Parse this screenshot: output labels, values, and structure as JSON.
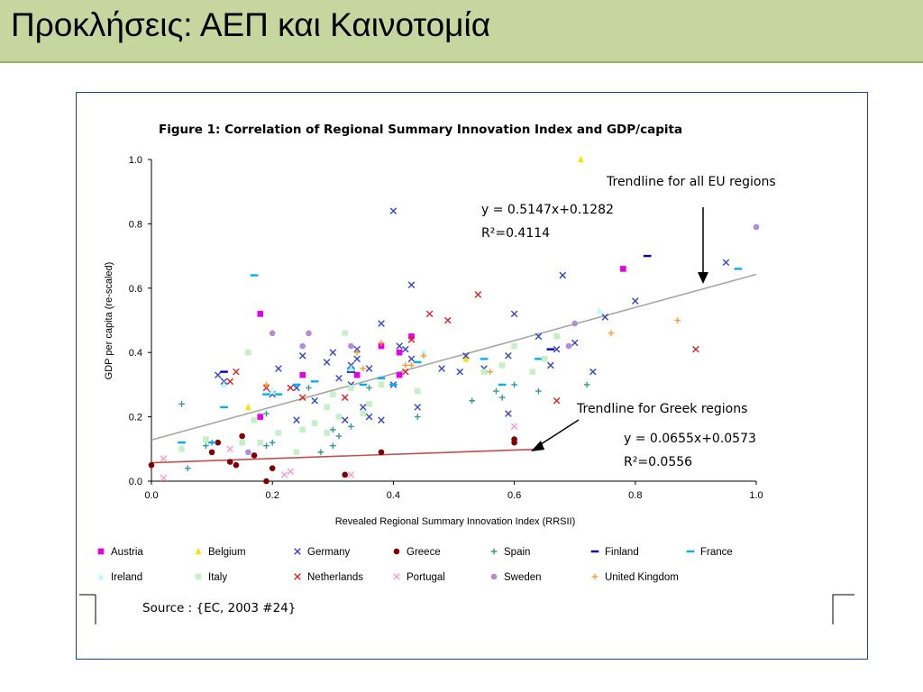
{
  "slide": {
    "title": "Προκλήσεις: ΑΕΠ και Καινοτομία"
  },
  "source_note": "Source : {EC, 2003 #24}",
  "chart_data": {
    "type": "scatter",
    "title": "Figure 1: Correlation of Regional Summary Innovation Index and GDP/capita",
    "xlabel": "Revealed Regional Summary Innovation Index (RRSII)",
    "ylabel": "GDP per capita (re-scaled)",
    "xlim": [
      0,
      1
    ],
    "ylim": [
      0,
      1
    ],
    "x_ticks": [
      "0.0",
      "0.2",
      "0.4",
      "0.6",
      "0.8",
      "1.0"
    ],
    "y_ticks": [
      "0.0",
      "0.2",
      "0.4",
      "0.6",
      "0.8",
      "1.0"
    ],
    "legend_placement": "bottom",
    "trendlines": [
      {
        "label": "Trendline for all EU regions",
        "equation": "y = 0.5147x+0.1282",
        "r2": "R²=0.4114",
        "slope": 0.5147,
        "intercept": 0.1282,
        "x_range": [
          0,
          1
        ],
        "color": "#a6a6a6"
      },
      {
        "label": "Trendline for Greek regions",
        "equation": "y = 0.0655x+0.0573",
        "r2": "R²=0.0556",
        "slope": 0.0655,
        "intercept": 0.0573,
        "x_range": [
          0,
          0.65
        ],
        "color": "#c0504d"
      }
    ],
    "series": [
      {
        "name": "Austria",
        "marker": "square",
        "color": "#e600e6",
        "points": [
          [
            0.18,
            0.2
          ],
          [
            0.18,
            0.52
          ],
          [
            0.25,
            0.33
          ],
          [
            0.34,
            0.33
          ],
          [
            0.38,
            0.42
          ],
          [
            0.41,
            0.4
          ],
          [
            0.41,
            0.33
          ],
          [
            0.43,
            0.45
          ],
          [
            0.78,
            0.66
          ]
        ]
      },
      {
        "name": "Belgium",
        "marker": "triangle",
        "color": "#ffe000",
        "points": [
          [
            0.16,
            0.23
          ],
          [
            0.52,
            0.38
          ],
          [
            0.71,
            1.0
          ]
        ]
      },
      {
        "name": "Germany",
        "marker": "x",
        "color": "#3344cc",
        "points": [
          [
            0.11,
            0.33
          ],
          [
            0.12,
            0.31
          ],
          [
            0.2,
            0.27
          ],
          [
            0.21,
            0.35
          ],
          [
            0.24,
            0.29
          ],
          [
            0.24,
            0.19
          ],
          [
            0.25,
            0.39
          ],
          [
            0.27,
            0.25
          ],
          [
            0.29,
            0.37
          ],
          [
            0.3,
            0.4
          ],
          [
            0.31,
            0.32
          ],
          [
            0.32,
            0.19
          ],
          [
            0.33,
            0.3
          ],
          [
            0.33,
            0.36
          ],
          [
            0.34,
            0.41
          ],
          [
            0.34,
            0.38
          ],
          [
            0.35,
            0.23
          ],
          [
            0.36,
            0.35
          ],
          [
            0.36,
            0.2
          ],
          [
            0.38,
            0.49
          ],
          [
            0.38,
            0.19
          ],
          [
            0.4,
            0.3
          ],
          [
            0.4,
            0.84
          ],
          [
            0.41,
            0.42
          ],
          [
            0.42,
            0.41
          ],
          [
            0.43,
            0.38
          ],
          [
            0.43,
            0.61
          ],
          [
            0.44,
            0.23
          ],
          [
            0.48,
            0.35
          ],
          [
            0.51,
            0.34
          ],
          [
            0.52,
            0.39
          ],
          [
            0.55,
            0.35
          ],
          [
            0.59,
            0.39
          ],
          [
            0.59,
            0.21
          ],
          [
            0.6,
            0.52
          ],
          [
            0.64,
            0.45
          ],
          [
            0.66,
            0.36
          ],
          [
            0.67,
            0.41
          ],
          [
            0.68,
            0.64
          ],
          [
            0.7,
            0.43
          ],
          [
            0.73,
            0.34
          ],
          [
            0.75,
            0.51
          ],
          [
            0.8,
            0.56
          ],
          [
            0.95,
            0.68
          ]
        ]
      },
      {
        "name": "Greece",
        "marker": "circle",
        "color": "#7f0000",
        "points": [
          [
            0.0,
            0.05
          ],
          [
            0.1,
            0.09
          ],
          [
            0.11,
            0.12
          ],
          [
            0.13,
            0.06
          ],
          [
            0.14,
            0.05
          ],
          [
            0.15,
            0.14
          ],
          [
            0.17,
            0.08
          ],
          [
            0.19,
            0.0
          ],
          [
            0.2,
            0.04
          ],
          [
            0.32,
            0.02
          ],
          [
            0.38,
            0.09
          ],
          [
            0.6,
            0.13
          ],
          [
            0.6,
            0.12
          ]
        ]
      },
      {
        "name": "Spain",
        "marker": "plus",
        "color": "#339999",
        "points": [
          [
            0.05,
            0.24
          ],
          [
            0.06,
            0.04
          ],
          [
            0.09,
            0.11
          ],
          [
            0.1,
            0.12
          ],
          [
            0.19,
            0.11
          ],
          [
            0.19,
            0.21
          ],
          [
            0.2,
            0.12
          ],
          [
            0.25,
            0.16
          ],
          [
            0.26,
            0.29
          ],
          [
            0.28,
            0.09
          ],
          [
            0.3,
            0.11
          ],
          [
            0.3,
            0.16
          ],
          [
            0.31,
            0.14
          ],
          [
            0.33,
            0.17
          ],
          [
            0.36,
            0.29
          ],
          [
            0.44,
            0.2
          ],
          [
            0.53,
            0.25
          ],
          [
            0.57,
            0.28
          ],
          [
            0.58,
            0.26
          ],
          [
            0.6,
            0.3
          ],
          [
            0.64,
            0.28
          ],
          [
            0.72,
            0.3
          ]
        ]
      },
      {
        "name": "Finland",
        "marker": "dash",
        "color": "#0000cc",
        "points": [
          [
            0.12,
            0.34
          ],
          [
            0.33,
            0.34
          ],
          [
            0.66,
            0.41
          ],
          [
            0.82,
            0.7
          ]
        ]
      },
      {
        "name": "France",
        "marker": "dash",
        "color": "#00b0f0",
        "points": [
          [
            0.05,
            0.12
          ],
          [
            0.1,
            0.12
          ],
          [
            0.12,
            0.23
          ],
          [
            0.17,
            0.64
          ],
          [
            0.19,
            0.27
          ],
          [
            0.21,
            0.27
          ],
          [
            0.24,
            0.3
          ],
          [
            0.27,
            0.31
          ],
          [
            0.33,
            0.35
          ],
          [
            0.35,
            0.3
          ],
          [
            0.38,
            0.32
          ],
          [
            0.4,
            0.3
          ],
          [
            0.44,
            0.37
          ],
          [
            0.55,
            0.38
          ],
          [
            0.58,
            0.3
          ],
          [
            0.64,
            0.38
          ],
          [
            0.97,
            0.66
          ]
        ]
      },
      {
        "name": "Ireland",
        "marker": "triangle",
        "color": "#b3ffff",
        "points": [
          [
            0.12,
            0.3
          ],
          [
            0.2,
            0.28
          ],
          [
            0.33,
            0.35
          ],
          [
            0.45,
            0.4
          ],
          [
            0.74,
            0.53
          ]
        ]
      },
      {
        "name": "Italy",
        "marker": "square",
        "color": "#c6f0c6",
        "points": [
          [
            0.05,
            0.1
          ],
          [
            0.09,
            0.13
          ],
          [
            0.15,
            0.12
          ],
          [
            0.16,
            0.4
          ],
          [
            0.17,
            0.19
          ],
          [
            0.18,
            0.12
          ],
          [
            0.21,
            0.15
          ],
          [
            0.24,
            0.09
          ],
          [
            0.25,
            0.16
          ],
          [
            0.27,
            0.18
          ],
          [
            0.29,
            0.15
          ],
          [
            0.29,
            0.23
          ],
          [
            0.3,
            0.27
          ],
          [
            0.31,
            0.2
          ],
          [
            0.32,
            0.46
          ],
          [
            0.33,
            0.29
          ],
          [
            0.35,
            0.21
          ],
          [
            0.36,
            0.24
          ],
          [
            0.38,
            0.3
          ],
          [
            0.44,
            0.28
          ],
          [
            0.55,
            0.34
          ],
          [
            0.58,
            0.36
          ],
          [
            0.6,
            0.42
          ],
          [
            0.63,
            0.34
          ],
          [
            0.65,
            0.38
          ],
          [
            0.67,
            0.45
          ]
        ]
      },
      {
        "name": "Netherlands",
        "marker": "x",
        "color": "#e02020",
        "points": [
          [
            0.13,
            0.31
          ],
          [
            0.14,
            0.34
          ],
          [
            0.19,
            0.29
          ],
          [
            0.23,
            0.29
          ],
          [
            0.25,
            0.26
          ],
          [
            0.32,
            0.26
          ],
          [
            0.42,
            0.34
          ],
          [
            0.43,
            0.44
          ],
          [
            0.46,
            0.52
          ],
          [
            0.49,
            0.5
          ],
          [
            0.54,
            0.58
          ],
          [
            0.67,
            0.25
          ],
          [
            0.9,
            0.41
          ]
        ]
      },
      {
        "name": "Portugal",
        "marker": "x",
        "color": "#ff99cc",
        "points": [
          [
            0.02,
            0.07
          ],
          [
            0.02,
            0.01
          ],
          [
            0.13,
            0.1
          ],
          [
            0.22,
            0.02
          ],
          [
            0.23,
            0.03
          ],
          [
            0.33,
            0.02
          ],
          [
            0.6,
            0.17
          ]
        ]
      },
      {
        "name": "Sweden",
        "marker": "circle",
        "color": "#b38cd9",
        "points": [
          [
            0.16,
            0.09
          ],
          [
            0.2,
            0.46
          ],
          [
            0.25,
            0.42
          ],
          [
            0.26,
            0.46
          ],
          [
            0.33,
            0.42
          ],
          [
            0.69,
            0.42
          ],
          [
            0.7,
            0.49
          ],
          [
            1.0,
            0.79
          ]
        ]
      },
      {
        "name": "United Kingdom",
        "marker": "plus",
        "color": "#ff9933",
        "points": [
          [
            0.19,
            0.3
          ],
          [
            0.34,
            0.4
          ],
          [
            0.35,
            0.35
          ],
          [
            0.38,
            0.43
          ],
          [
            0.42,
            0.36
          ],
          [
            0.43,
            0.36
          ],
          [
            0.45,
            0.39
          ],
          [
            0.56,
            0.34
          ],
          [
            0.76,
            0.46
          ],
          [
            0.87,
            0.5
          ]
        ]
      }
    ]
  }
}
